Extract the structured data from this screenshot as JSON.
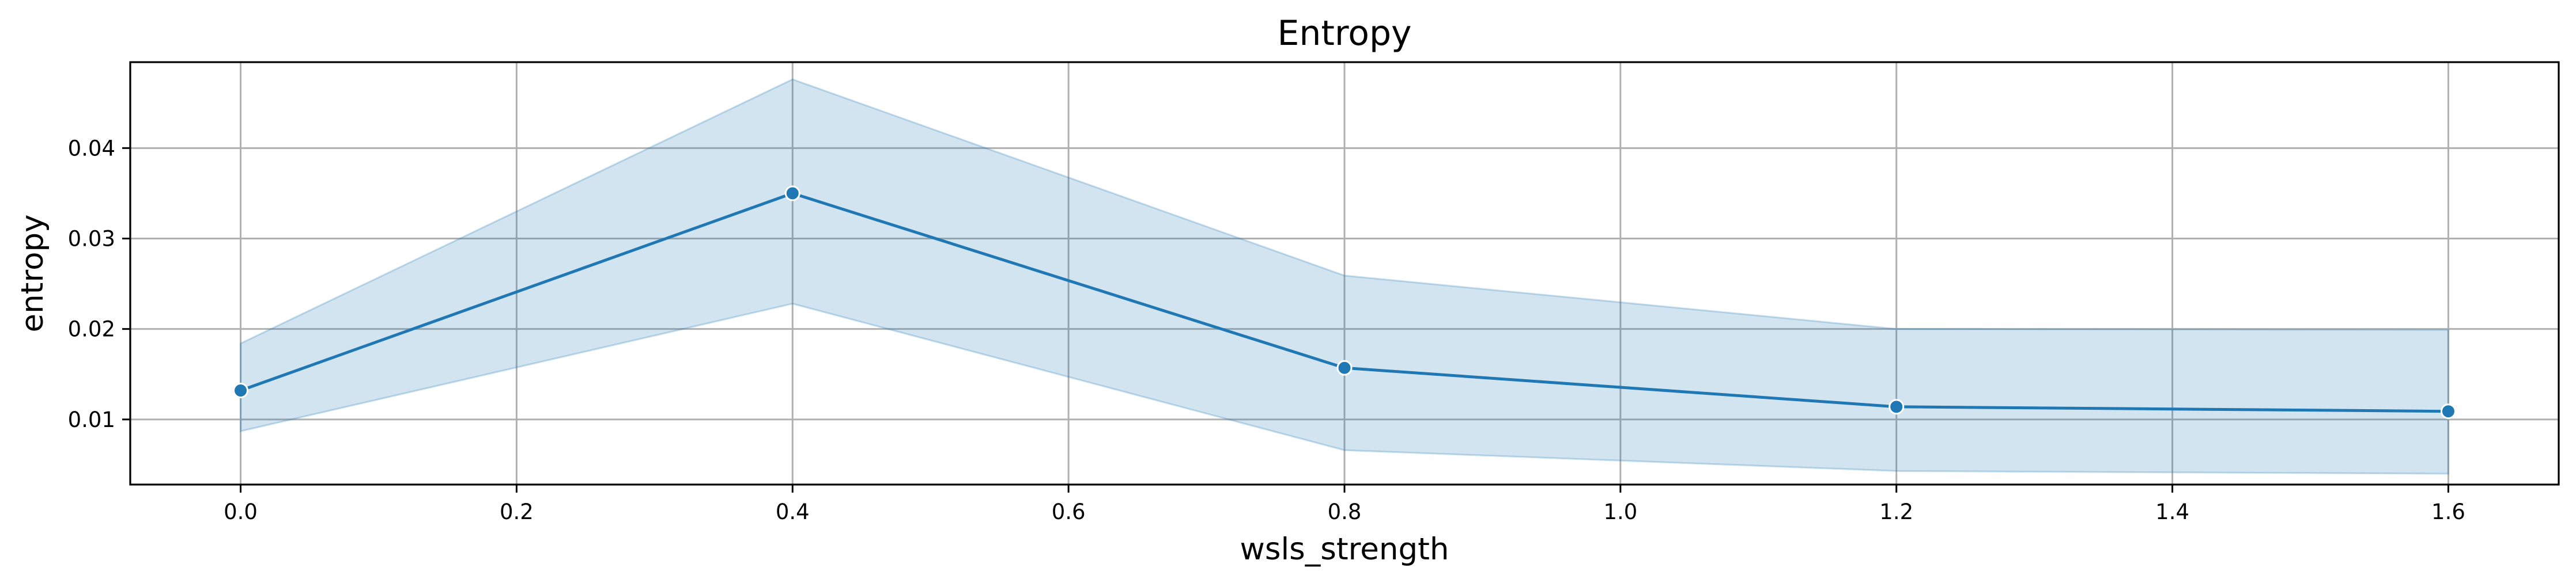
{
  "chart_data": {
    "type": "line",
    "title": "Entropy",
    "xlabel": "wsls_strength",
    "ylabel": "entropy",
    "xlim": [
      -0.08,
      1.68
    ],
    "ylim": [
      0.0028,
      0.0495
    ],
    "x_ticks": [
      0.0,
      0.2,
      0.4,
      0.6,
      0.8,
      1.0,
      1.2,
      1.4,
      1.6
    ],
    "x_tick_labels": [
      "0.0",
      "0.2",
      "0.4",
      "0.6",
      "0.8",
      "1.0",
      "1.2",
      "1.4",
      "1.6"
    ],
    "y_ticks": [
      0.01,
      0.02,
      0.03,
      0.04
    ],
    "y_tick_labels": [
      "0.01",
      "0.02",
      "0.03",
      "0.04"
    ],
    "grid": true,
    "legend": "none",
    "series": [
      {
        "x": [
          0.0,
          0.4,
          0.8,
          1.2,
          1.6
        ],
        "y": [
          0.0132,
          0.035,
          0.0157,
          0.0114,
          0.0109
        ],
        "ci_lower": [
          0.0087,
          0.0228,
          0.0066,
          0.0043,
          0.004
        ],
        "ci_upper": [
          0.0184,
          0.0476,
          0.0259,
          0.02,
          0.0199
        ],
        "color": "#1f77b4",
        "band_color": "#1f77b4",
        "marker": "circle"
      }
    ]
  }
}
